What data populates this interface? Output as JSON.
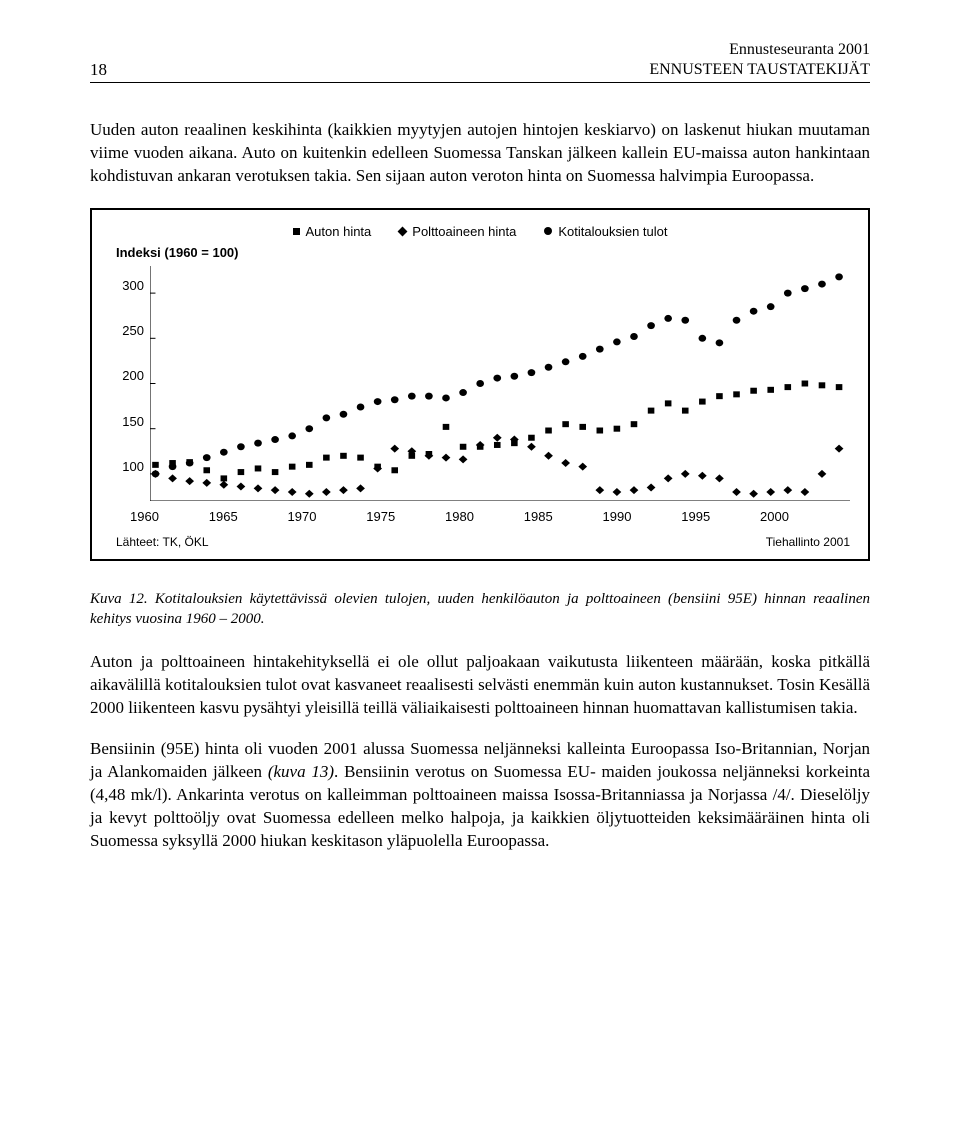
{
  "header": {
    "page_number": "18",
    "title": "Ennusteseuranta 2001",
    "subtitle": "ENNUSTEEN TAUSTATEKIJÄT"
  },
  "paragraphs": {
    "p1": "Uuden auton reaalinen keskihinta (kaikkien myytyjen autojen hintojen keskiarvo) on laskenut hiukan muutaman viime vuoden aikana. Auto on kuitenkin edelleen Suomessa Tanskan jälkeen kallein EU-maissa auton hankintaan kohdistuvan ankaran verotuksen takia. Sen sijaan auton veroton hinta on Suomessa halvimpia Euroopassa.",
    "p2": "Auton ja polttoaineen hintakehityksellä ei ole ollut paljoakaan vaikutusta liikenteen määrään, koska pitkällä aikavälillä kotitalouksien tulot ovat kasvaneet reaalisesti selvästi enemmän kuin auton kustannukset. Tosin Kesällä 2000 liikenteen kasvu pysähtyi yleisillä teillä väliaikaisesti polttoaineen hinnan huomattavan kallistumisen takia.",
    "p3_a": "Bensiinin (95E) hinta oli vuoden 2001 alussa Suomessa neljänneksi kalleinta Euroopassa Iso-Britannian, Norjan ja Alankomaiden jälkeen ",
    "p3_ref": "(kuva 13)",
    "p3_b": ". Bensiinin verotus on Suomessa EU- maiden joukossa neljänneksi korkeinta (4,48 mk/l). Ankarinta verotus on kalleimman polttoaineen maissa Isossa-Britanniassa ja Norjassa /4/. Dieselöljy ja kevyt polttoöljy ovat Suomessa edelleen melko halpoja, ja kaikkien öljytuotteiden keksimääräinen hinta oli Suomessa syksyllä 2000 hiukan keskitason yläpuolella Euroopassa."
  },
  "chart": {
    "y_axis_title": "Indeksi (1960 = 100)",
    "legend": {
      "s1": "Auton hinta",
      "s2": "Polttoaineen hinta",
      "s3": "Kotitalouksien tulot"
    },
    "years_start": 1960,
    "years_end": 2000,
    "x_tick_labels": [
      "1960",
      "1965",
      "1970",
      "1975",
      "1980",
      "1985",
      "1990",
      "1995",
      "2000"
    ],
    "y_tick_labels": [
      "300",
      "250",
      "200",
      "150",
      "100"
    ],
    "ylim": [
      70,
      330
    ],
    "series": {
      "auton_hinta": {
        "marker": "square",
        "color": "#000000",
        "values": [
          110,
          112,
          113,
          104,
          95,
          102,
          106,
          102,
          108,
          110,
          118,
          120,
          118,
          108,
          104,
          120,
          122,
          152,
          130,
          130,
          132,
          134,
          140,
          148,
          155,
          152,
          148,
          150,
          155,
          170,
          178,
          170,
          180,
          186,
          188,
          192,
          193,
          196,
          200,
          198,
          196
        ]
      },
      "polttoaineen_hinta": {
        "marker": "diamond",
        "color": "#000000",
        "values": [
          100,
          95,
          92,
          90,
          88,
          86,
          84,
          82,
          80,
          78,
          80,
          82,
          84,
          106,
          128,
          125,
          120,
          118,
          116,
          132,
          140,
          138,
          130,
          120,
          112,
          108,
          82,
          80,
          82,
          85,
          95,
          100,
          98,
          95,
          80,
          78,
          80,
          82,
          80,
          100,
          128
        ]
      },
      "kotitalouksien_tulot": {
        "marker": "circle",
        "color": "#000000",
        "values": [
          100,
          108,
          112,
          118,
          124,
          130,
          134,
          138,
          142,
          150,
          162,
          166,
          174,
          180,
          182,
          186,
          186,
          184,
          190,
          200,
          206,
          208,
          212,
          218,
          224,
          230,
          238,
          246,
          252,
          264,
          272,
          270,
          250,
          245,
          270,
          280,
          285,
          300,
          305,
          310,
          318
        ]
      }
    },
    "sources_label": "Lähteet: TK, ÖKL",
    "attribution": "Tiehallinto 2001"
  },
  "caption": {
    "label": "Kuva 12.",
    "text": "Kotitalouksien käytettävissä olevien tulojen, uuden henkilöauton ja polttoaineen (bensiini 95E) hinnan reaalinen kehitys vuosina 1960 – 2000."
  }
}
